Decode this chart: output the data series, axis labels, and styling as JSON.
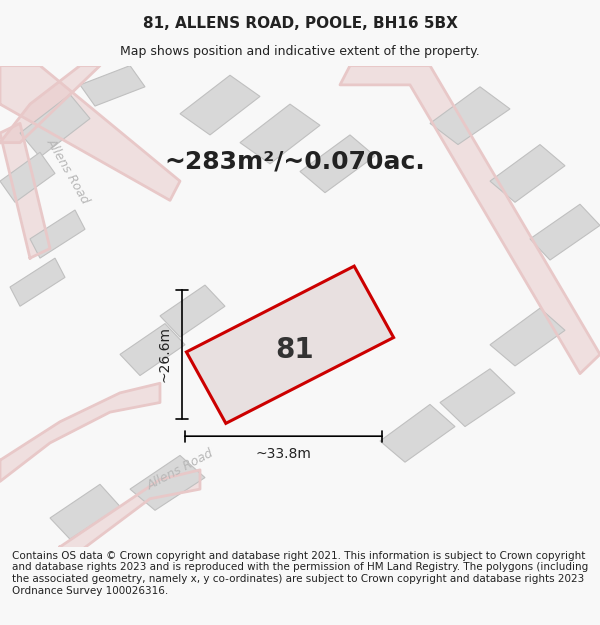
{
  "title_line1": "81, ALLENS ROAD, POOLE, BH16 5BX",
  "title_line2": "Map shows position and indicative extent of the property.",
  "area_text": "~283m²/~0.070ac.",
  "plot_number": "81",
  "dim_width": "~33.8m",
  "dim_height": "~26.6m",
  "footer": "Contains OS data © Crown copyright and database right 2021. This information is subject to Crown copyright and database rights 2023 and is reproduced with the permission of HM Land Registry. The polygons (including the associated geometry, namely x, y co-ordinates) are subject to Crown copyright and database rights 2023 Ordnance Survey 100026316.",
  "bg_color": "#f5f5f5",
  "map_bg": "#f0eeee",
  "road_color_light": "#e8c8c8",
  "building_fill": "#d8d8d8",
  "building_stroke": "#c0c0c0",
  "plot_fill": "#e8e0e0",
  "plot_stroke": "#cc0000",
  "road_label_color": "#b0b0b0",
  "title_fontsize": 11,
  "subtitle_fontsize": 9,
  "area_fontsize": 18,
  "plot_label_fontsize": 20,
  "dim_fontsize": 10,
  "footer_fontsize": 7.5
}
